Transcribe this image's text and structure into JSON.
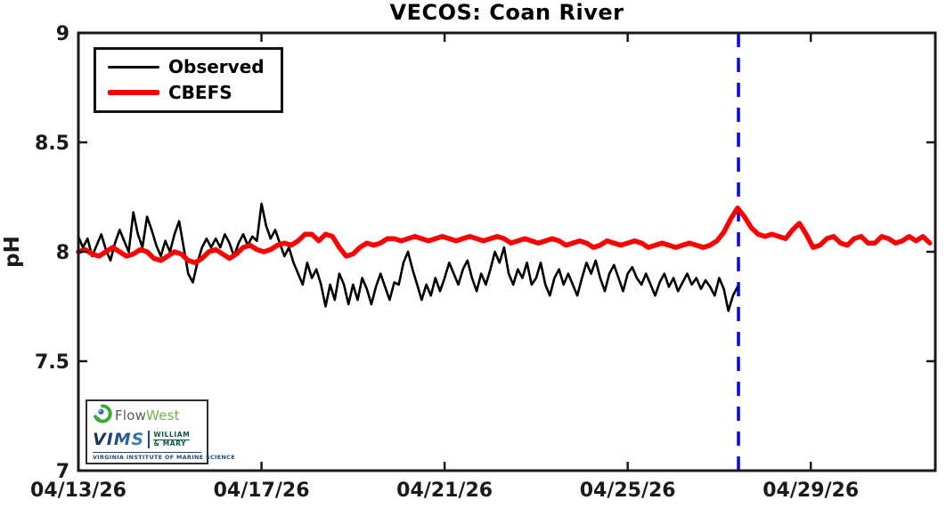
{
  "figure": {
    "title": "VECOS: Coan River",
    "ylabel": "pH"
  },
  "legend": {
    "position": "upper-left",
    "items": [
      {
        "label": "Observed",
        "color": "#000000",
        "line_width": 3
      },
      {
        "label": "CBEFS",
        "color": "#ff0000",
        "line_width": 6
      }
    ]
  },
  "axes": {
    "x_unit": "days since 04/13/26",
    "xlim": [
      0,
      18.72
    ],
    "ylim": [
      7,
      9
    ],
    "xticks": [
      {
        "pos": 0,
        "label": "04/13/26"
      },
      {
        "pos": 4,
        "label": "04/17/26"
      },
      {
        "pos": 8,
        "label": "04/21/26"
      },
      {
        "pos": 12,
        "label": "04/25/26"
      },
      {
        "pos": 16,
        "label": "04/29/26"
      }
    ],
    "yticks": [
      {
        "pos": 7,
        "label": "7"
      },
      {
        "pos": 7.5,
        "label": "7.5"
      },
      {
        "pos": 8,
        "label": "8"
      },
      {
        "pos": 8.5,
        "label": "8.5"
      },
      {
        "pos": 9,
        "label": "9"
      }
    ],
    "grid": false,
    "box": true,
    "axis_color": "#1a1a1a"
  },
  "chart_data": {
    "type": "line",
    "title": "VECOS: Coan River",
    "xlabel": "",
    "ylabel": "pH",
    "x_axis": "days since 04/13/26 00:00, ticks labeled 04/13/26 through 04/29/26 every 4 days",
    "ylim": [
      7,
      9
    ],
    "xlim": [
      0,
      18.72
    ],
    "vline": {
      "x": 14.42,
      "color": "#0000ff",
      "style": "dashed",
      "meaning": "forecast divider"
    },
    "series": [
      {
        "name": "Observed",
        "color": "#000000",
        "width": 2.6,
        "t0": 0,
        "dt": 0.1,
        "values": [
          8.07,
          8.02,
          8.06,
          7.98,
          8.03,
          8.08,
          8.01,
          7.96,
          8.04,
          8.1,
          8.05,
          8.0,
          8.18,
          8.08,
          8.02,
          8.16,
          8.1,
          8.03,
          7.98,
          8.05,
          8.0,
          8.08,
          8.14,
          8.02,
          7.9,
          7.86,
          7.95,
          8.02,
          8.06,
          8.02,
          8.06,
          8.02,
          8.08,
          8.04,
          7.98,
          8.04,
          8.08,
          8.03,
          8.07,
          8.05,
          8.22,
          8.12,
          8.06,
          8.1,
          8.04,
          7.98,
          8.02,
          7.95,
          7.9,
          7.85,
          7.95,
          7.88,
          7.92,
          7.85,
          7.75,
          7.85,
          7.78,
          7.9,
          7.85,
          7.76,
          7.85,
          7.78,
          7.88,
          7.83,
          7.76,
          7.84,
          7.9,
          7.84,
          7.78,
          7.86,
          7.85,
          7.95,
          8.0,
          7.92,
          7.85,
          7.78,
          7.85,
          7.8,
          7.88,
          7.82,
          7.88,
          7.95,
          7.9,
          7.85,
          7.92,
          7.96,
          7.88,
          7.82,
          7.9,
          7.85,
          7.92,
          8.0,
          7.95,
          8.02,
          7.9,
          7.85,
          7.92,
          7.88,
          7.95,
          7.85,
          7.88,
          7.95,
          7.85,
          7.8,
          7.88,
          7.92,
          7.85,
          7.9,
          7.85,
          7.8,
          7.88,
          7.95,
          7.9,
          7.96,
          7.88,
          7.82,
          7.9,
          7.94,
          7.88,
          7.82,
          7.9,
          7.93,
          7.88,
          7.85,
          7.9,
          7.85,
          7.8,
          7.86,
          7.9,
          7.84,
          7.88,
          7.82,
          7.86,
          7.9,
          7.85,
          7.88,
          7.83,
          7.87,
          7.84,
          7.8,
          7.88,
          7.83,
          7.73,
          7.8,
          7.84
        ]
      },
      {
        "name": "CBEFS",
        "color": "#ff0000",
        "width": 5.5,
        "t0": 0,
        "dt": 0.15,
        "values": [
          8.0,
          8.01,
          7.99,
          7.98,
          8.0,
          8.02,
          8.0,
          7.98,
          7.99,
          8.01,
          8.0,
          7.97,
          7.96,
          7.98,
          8.0,
          7.99,
          7.96,
          7.95,
          7.97,
          8.0,
          8.01,
          7.99,
          7.97,
          7.99,
          8.02,
          8.03,
          8.01,
          8.0,
          8.01,
          8.03,
          8.04,
          8.03,
          8.05,
          8.08,
          8.08,
          8.05,
          8.08,
          8.07,
          8.02,
          7.98,
          7.99,
          8.02,
          8.04,
          8.03,
          8.04,
          8.06,
          8.06,
          8.05,
          8.06,
          8.07,
          8.06,
          8.05,
          8.06,
          8.07,
          8.06,
          8.05,
          8.06,
          8.07,
          8.06,
          8.05,
          8.06,
          8.07,
          8.06,
          8.04,
          8.05,
          8.06,
          8.05,
          8.04,
          8.05,
          8.06,
          8.05,
          8.03,
          8.04,
          8.05,
          8.04,
          8.02,
          8.03,
          8.05,
          8.04,
          8.03,
          8.04,
          8.05,
          8.04,
          8.02,
          8.03,
          8.04,
          8.03,
          8.02,
          8.03,
          8.04,
          8.03,
          8.02,
          8.03,
          8.05,
          8.09,
          8.15,
          8.2,
          8.16,
          8.11,
          8.08,
          8.07,
          8.08,
          8.07,
          8.06,
          8.1,
          8.13,
          8.08,
          8.02,
          8.03,
          8.06,
          8.07,
          8.04,
          8.03,
          8.06,
          8.07,
          8.04,
          8.04,
          8.07,
          8.06,
          8.04,
          8.05,
          8.07,
          8.05,
          8.07,
          8.04
        ]
      }
    ],
    "legend_entries": [
      "Observed",
      "CBEFS"
    ],
    "legend_position": "upper left"
  },
  "logo": {
    "flowwest": {
      "part1": "Flow",
      "part2": "West",
      "icon": "swirl-icon",
      "green": "#6cb33f",
      "gray": "#58595b"
    },
    "vims": {
      "acronym": "VIMS",
      "wm_line1": "WILLIAM",
      "wm_line2": "& MARY",
      "caption": "VIRGINIA INSTITUTE OF MARINE SCIENCE",
      "navy": "#1b4a7e",
      "wm_green": "#115740"
    }
  }
}
